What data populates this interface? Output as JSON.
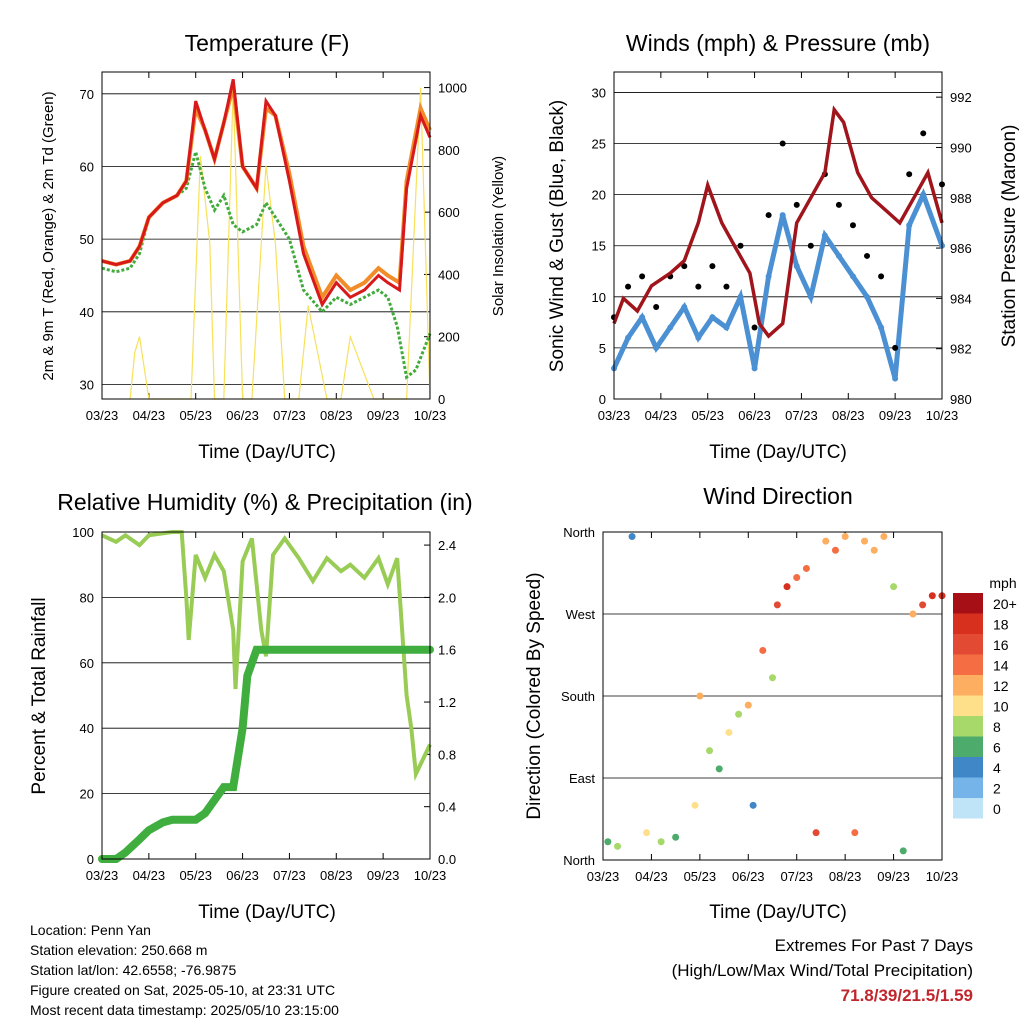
{
  "chart_data": [
    {
      "type": "line",
      "title": "Temperature (F)",
      "xlabel": "Time (Day/UTC)",
      "ylabel": "2m & 9m T (Red, Orange) & 2m Td (Green)",
      "ylabel_right": "Solar Insolation (Yellow)",
      "x_ticks": [
        "03/23",
        "04/23",
        "05/23",
        "06/23",
        "07/23",
        "08/23",
        "09/23",
        "10/23"
      ],
      "ylim": [
        28,
        73
      ],
      "y_ticks": [
        30,
        40,
        50,
        60,
        70
      ],
      "ylim_right": [
        0,
        1050
      ],
      "y_ticks_right": [
        0,
        200,
        400,
        600,
        800,
        1000
      ],
      "grid": true,
      "colors": {
        "temp_2m": "#d7191c",
        "temp_9m": "#f28c28",
        "dewpoint": "#41ab3c",
        "solar": "#f7e15a"
      },
      "series": [
        {
          "x": [
            0,
            0.3,
            0.6,
            0.8,
            1.0,
            1.3,
            1.6,
            1.8,
            2.0,
            2.2,
            2.4,
            2.6,
            2.8,
            3.0,
            3.3,
            3.5,
            3.7,
            4.0,
            4.3,
            4.7,
            5.0,
            5.3,
            5.6,
            5.9,
            6.1,
            6.35,
            6.5,
            6.8,
            7.0
          ],
          "values": [
            47,
            46.5,
            47,
            49,
            53,
            55,
            56,
            58,
            69,
            65,
            61,
            66,
            72,
            60,
            57,
            69,
            67,
            58,
            48,
            41,
            44,
            42,
            43,
            45,
            44,
            43,
            57,
            67,
            64
          ]
        },
        {
          "x": [
            0,
            0.3,
            0.6,
            0.8,
            1.0,
            1.3,
            1.6,
            1.8,
            2.0,
            2.2,
            2.4,
            2.6,
            2.8,
            3.0,
            3.3,
            3.5,
            3.7,
            4.0,
            4.3,
            4.7,
            5.0,
            5.3,
            5.6,
            5.9,
            6.1,
            6.35,
            6.5,
            6.8,
            7.0
          ],
          "values": [
            47,
            46.5,
            47,
            49,
            53,
            55,
            56,
            58,
            68,
            65,
            61,
            66,
            71,
            60,
            57,
            68,
            67,
            59,
            49,
            42,
            45,
            43,
            44,
            46,
            45,
            44,
            58,
            68,
            65
          ]
        },
        {
          "x": [
            0,
            0.3,
            0.6,
            0.8,
            1.0,
            1.3,
            1.6,
            1.8,
            2.0,
            2.2,
            2.4,
            2.6,
            2.8,
            3.0,
            3.3,
            3.5,
            3.7,
            4.0,
            4.3,
            4.7,
            5.0,
            5.3,
            5.6,
            5.9,
            6.1,
            6.3,
            6.5,
            6.7,
            7.0
          ],
          "values": [
            46,
            45.5,
            46,
            48,
            53,
            55,
            56,
            57,
            62,
            57,
            54,
            56,
            52,
            51,
            52,
            55,
            53,
            50,
            43,
            40,
            42,
            41,
            42,
            43,
            42,
            38,
            31,
            32,
            37
          ]
        },
        {
          "x": [
            0.6,
            0.7,
            0.8,
            1.0,
            1.1,
            1.9,
            2.1,
            2.3,
            2.4,
            2.6,
            2.8,
            2.9,
            3.0,
            3.2,
            3.5,
            3.7,
            3.9,
            4.2,
            4.4,
            4.8,
            5.1,
            5.3,
            5.8,
            5.9,
            6.3,
            6.5,
            6.8,
            7.0
          ],
          "values": [
            0,
            150,
            200,
            0,
            0,
            0,
            780,
            500,
            0,
            0,
            1000,
            500,
            0,
            0,
            750,
            500,
            0,
            0,
            300,
            0,
            0,
            200,
            0,
            0,
            0,
            0,
            1000,
            0
          ]
        }
      ]
    },
    {
      "type": "scatter",
      "title": "Winds (mph) & Pressure (mb)",
      "xlabel": "Time (Day/UTC)",
      "ylabel": "Sonic Wind & Gust (Blue, Black)",
      "ylabel_right": "Station Pressure (Maroon)",
      "x_ticks": [
        "03/23",
        "04/23",
        "05/23",
        "06/23",
        "07/23",
        "08/23",
        "09/23",
        "10/23"
      ],
      "ylim": [
        0,
        32
      ],
      "y_ticks": [
        0,
        5,
        10,
        15,
        20,
        25,
        30
      ],
      "ylim_right": [
        980,
        993
      ],
      "y_ticks_right": [
        980,
        982,
        984,
        986,
        988,
        990,
        992
      ],
      "grid": true,
      "colors": {
        "wind": "#4a90d2",
        "gust": "#000000",
        "pressure": "#a0151b"
      },
      "series": [
        {
          "x": [
            0,
            0.3,
            0.6,
            0.9,
            1.2,
            1.5,
            1.8,
            2.1,
            2.4,
            2.7,
            3.0,
            3.3,
            3.6,
            3.9,
            4.2,
            4.5,
            4.8,
            5.1,
            5.4,
            5.7,
            6.0,
            6.3,
            6.6,
            7.0
          ],
          "values": [
            3,
            6,
            8,
            5,
            7,
            9,
            6,
            8,
            7,
            10,
            3,
            12,
            18,
            13,
            10,
            16,
            14,
            12,
            10,
            7,
            2,
            17,
            20,
            15
          ]
        },
        {
          "x": [
            0,
            0.3,
            0.6,
            0.9,
            1.2,
            1.5,
            1.8,
            2.1,
            2.4,
            2.7,
            3.0,
            3.3,
            3.6,
            3.9,
            4.2,
            4.5,
            4.8,
            5.1,
            5.4,
            5.7,
            6.0,
            6.3,
            6.6,
            7.0
          ],
          "values": [
            8,
            11,
            12,
            9,
            12,
            13,
            11,
            13,
            11,
            15,
            7,
            18,
            25,
            19,
            15,
            22,
            19,
            17,
            14,
            12,
            5,
            22,
            26,
            21
          ]
        },
        {
          "x": [
            0,
            0.2,
            0.5,
            0.8,
            1.2,
            1.5,
            1.8,
            2.0,
            2.3,
            2.6,
            2.9,
            3.1,
            3.3,
            3.6,
            3.9,
            4.2,
            4.5,
            4.7,
            4.9,
            5.2,
            5.5,
            5.8,
            6.1,
            6.4,
            6.7,
            7.0
          ],
          "values": [
            983,
            984,
            983.5,
            984.5,
            985,
            985.5,
            987,
            988.5,
            987,
            986,
            985,
            983,
            982.5,
            983,
            987,
            988,
            989,
            991.5,
            991,
            989,
            988,
            987.5,
            987,
            988,
            989,
            987
          ]
        }
      ]
    },
    {
      "type": "line",
      "title": "Relative Humidity (%) & Precipitation (in)",
      "xlabel": "Time (Day/UTC)",
      "ylabel": "Percent & Total Rainfall",
      "x_ticks": [
        "03/23",
        "04/23",
        "05/23",
        "06/23",
        "07/23",
        "08/23",
        "09/23",
        "10/23"
      ],
      "ylim": [
        0,
        100
      ],
      "y_ticks": [
        0,
        20,
        40,
        60,
        80,
        100
      ],
      "ylim_right": [
        0,
        2.5
      ],
      "y_ticks_right": [
        "0.0",
        "0.4",
        "0.8",
        "1.2",
        "1.6",
        "2.0",
        "2.4"
      ],
      "grid": true,
      "colors": {
        "rh": "#99cc55",
        "precip": "#3fae3f"
      },
      "series": [
        {
          "x": [
            0,
            0.3,
            0.5,
            0.8,
            1.0,
            1.5,
            1.7,
            1.8,
            1.85,
            2.0,
            2.2,
            2.4,
            2.6,
            2.8,
            2.85,
            3.0,
            3.2,
            3.4,
            3.5,
            3.65,
            3.9,
            4.2,
            4.5,
            4.8,
            5.1,
            5.3,
            5.6,
            5.9,
            6.1,
            6.3,
            6.5,
            6.6,
            6.7,
            7.0
          ],
          "values": [
            99,
            97,
            99,
            96,
            99,
            100,
            100,
            80,
            67,
            93,
            86,
            93,
            88,
            70,
            52,
            91,
            98,
            70,
            62,
            93,
            98,
            92,
            85,
            92,
            88,
            90,
            86,
            92,
            84,
            92,
            50,
            40,
            26,
            35
          ]
        },
        {
          "x": [
            0,
            0.3,
            0.5,
            0.8,
            1.0,
            1.3,
            1.5,
            1.8,
            2.0,
            2.2,
            2.4,
            2.6,
            2.8,
            3.0,
            3.1,
            3.3,
            3.6,
            4.0,
            5.0,
            6.0,
            7.0
          ],
          "values": [
            0,
            0,
            0.05,
            0.15,
            0.22,
            0.28,
            0.3,
            0.3,
            0.3,
            0.35,
            0.45,
            0.55,
            0.55,
            1.0,
            1.4,
            1.6,
            1.6,
            1.6,
            1.6,
            1.6,
            1.6
          ]
        }
      ]
    },
    {
      "type": "scatter",
      "title": "Wind Direction",
      "xlabel": "Time (Day/UTC)",
      "ylabel": "Direction (Colored By Speed)",
      "x_ticks": [
        "03/23",
        "04/23",
        "05/23",
        "06/23",
        "07/23",
        "08/23",
        "09/23",
        "10/23"
      ],
      "y_ticks": [
        "North",
        "East",
        "South",
        "West",
        "North"
      ],
      "ylim": [
        0,
        360
      ],
      "grid": true,
      "legend": {
        "title": "mph",
        "labels": [
          "20+",
          "18",
          "16",
          "14",
          "12",
          "10",
          "8",
          "6",
          "4",
          "2",
          "0"
        ],
        "colors": [
          "#a50f15",
          "#d7301f",
          "#e34a33",
          "#f46d43",
          "#fdae61",
          "#fee08b",
          "#a6d96a",
          "#4dac6c",
          "#3f87c6",
          "#74b4e8",
          "#bfe3f7"
        ]
      },
      "series": [
        {
          "x": [
            0.1,
            0.3,
            0.6,
            0.9,
            1.2,
            1.5,
            1.9,
            2.0,
            2.2,
            2.4,
            2.6,
            2.8,
            3.0,
            3.1,
            3.3,
            3.5,
            3.6,
            3.8,
            4.0,
            4.2,
            4.4,
            4.6,
            4.8,
            5.0,
            5.2,
            5.4,
            5.6,
            5.8,
            6.0,
            6.2,
            6.4,
            6.6,
            6.8,
            7.0
          ],
          "values": [
            20,
            15,
            355,
            30,
            20,
            25,
            60,
            180,
            120,
            100,
            140,
            160,
            170,
            60,
            230,
            200,
            280,
            300,
            310,
            320,
            30,
            350,
            340,
            355,
            30,
            350,
            340,
            355,
            300,
            10,
            270,
            280,
            290,
            290
          ],
          "speeds": [
            6,
            8,
            4,
            10,
            7,
            5,
            9,
            12,
            8,
            6,
            10,
            8,
            11,
            4,
            14,
            8,
            16,
            18,
            14,
            13,
            15,
            12,
            14,
            11,
            14,
            12,
            11,
            12,
            8,
            5,
            12,
            16,
            18,
            17
          ]
        }
      ]
    }
  ],
  "info": {
    "location": "Location: Penn Yan",
    "elevation": "Station elevation: 250.668 m",
    "latlon": "Station lat/lon: 42.6558; -76.9875",
    "created": "Figure created on Sat, 2025-05-10, at 23:31 UTC",
    "timestamp": "Most recent data timestamp: 2025/05/10 23:15:00"
  },
  "extremes": {
    "title": "Extremes For Past 7 Days",
    "subtitle": "(High/Low/Max Wind/Total Precipitation)",
    "values": "71.8/39/21.5/1.59"
  }
}
